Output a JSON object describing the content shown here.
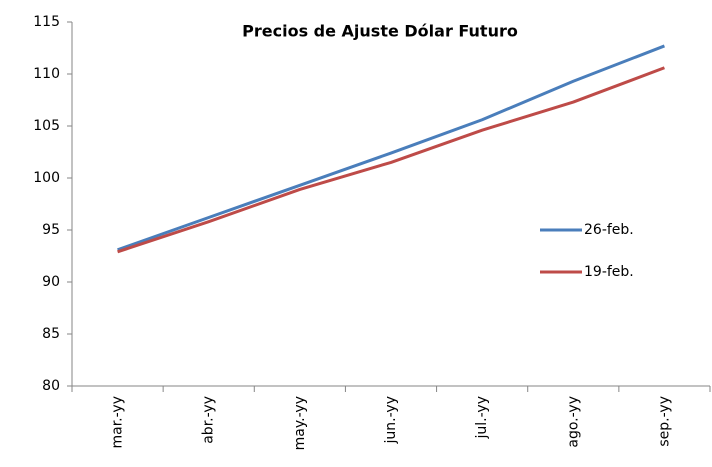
{
  "chart_data": {
    "type": "line",
    "title": "Precios de Ajuste Dólar Futuro",
    "categories": [
      "mar.-yy",
      "abr.-yy",
      "may.-yy",
      "jun.-yy",
      "jul.-yy",
      "ago.-yy",
      "sep.-yy"
    ],
    "series": [
      {
        "name": "26-feb.",
        "color": "#4a7ebb",
        "values": [
          93.1,
          96.2,
          99.3,
          102.4,
          105.6,
          109.3,
          112.7
        ]
      },
      {
        "name": "19-feb.",
        "color": "#be4b48",
        "values": [
          92.9,
          95.8,
          98.9,
          101.5,
          104.6,
          107.3,
          110.6
        ]
      }
    ],
    "ylim": [
      80,
      115
    ],
    "yticks": [
      80,
      85,
      90,
      95,
      100,
      105,
      110,
      115
    ],
    "grid": false
  }
}
